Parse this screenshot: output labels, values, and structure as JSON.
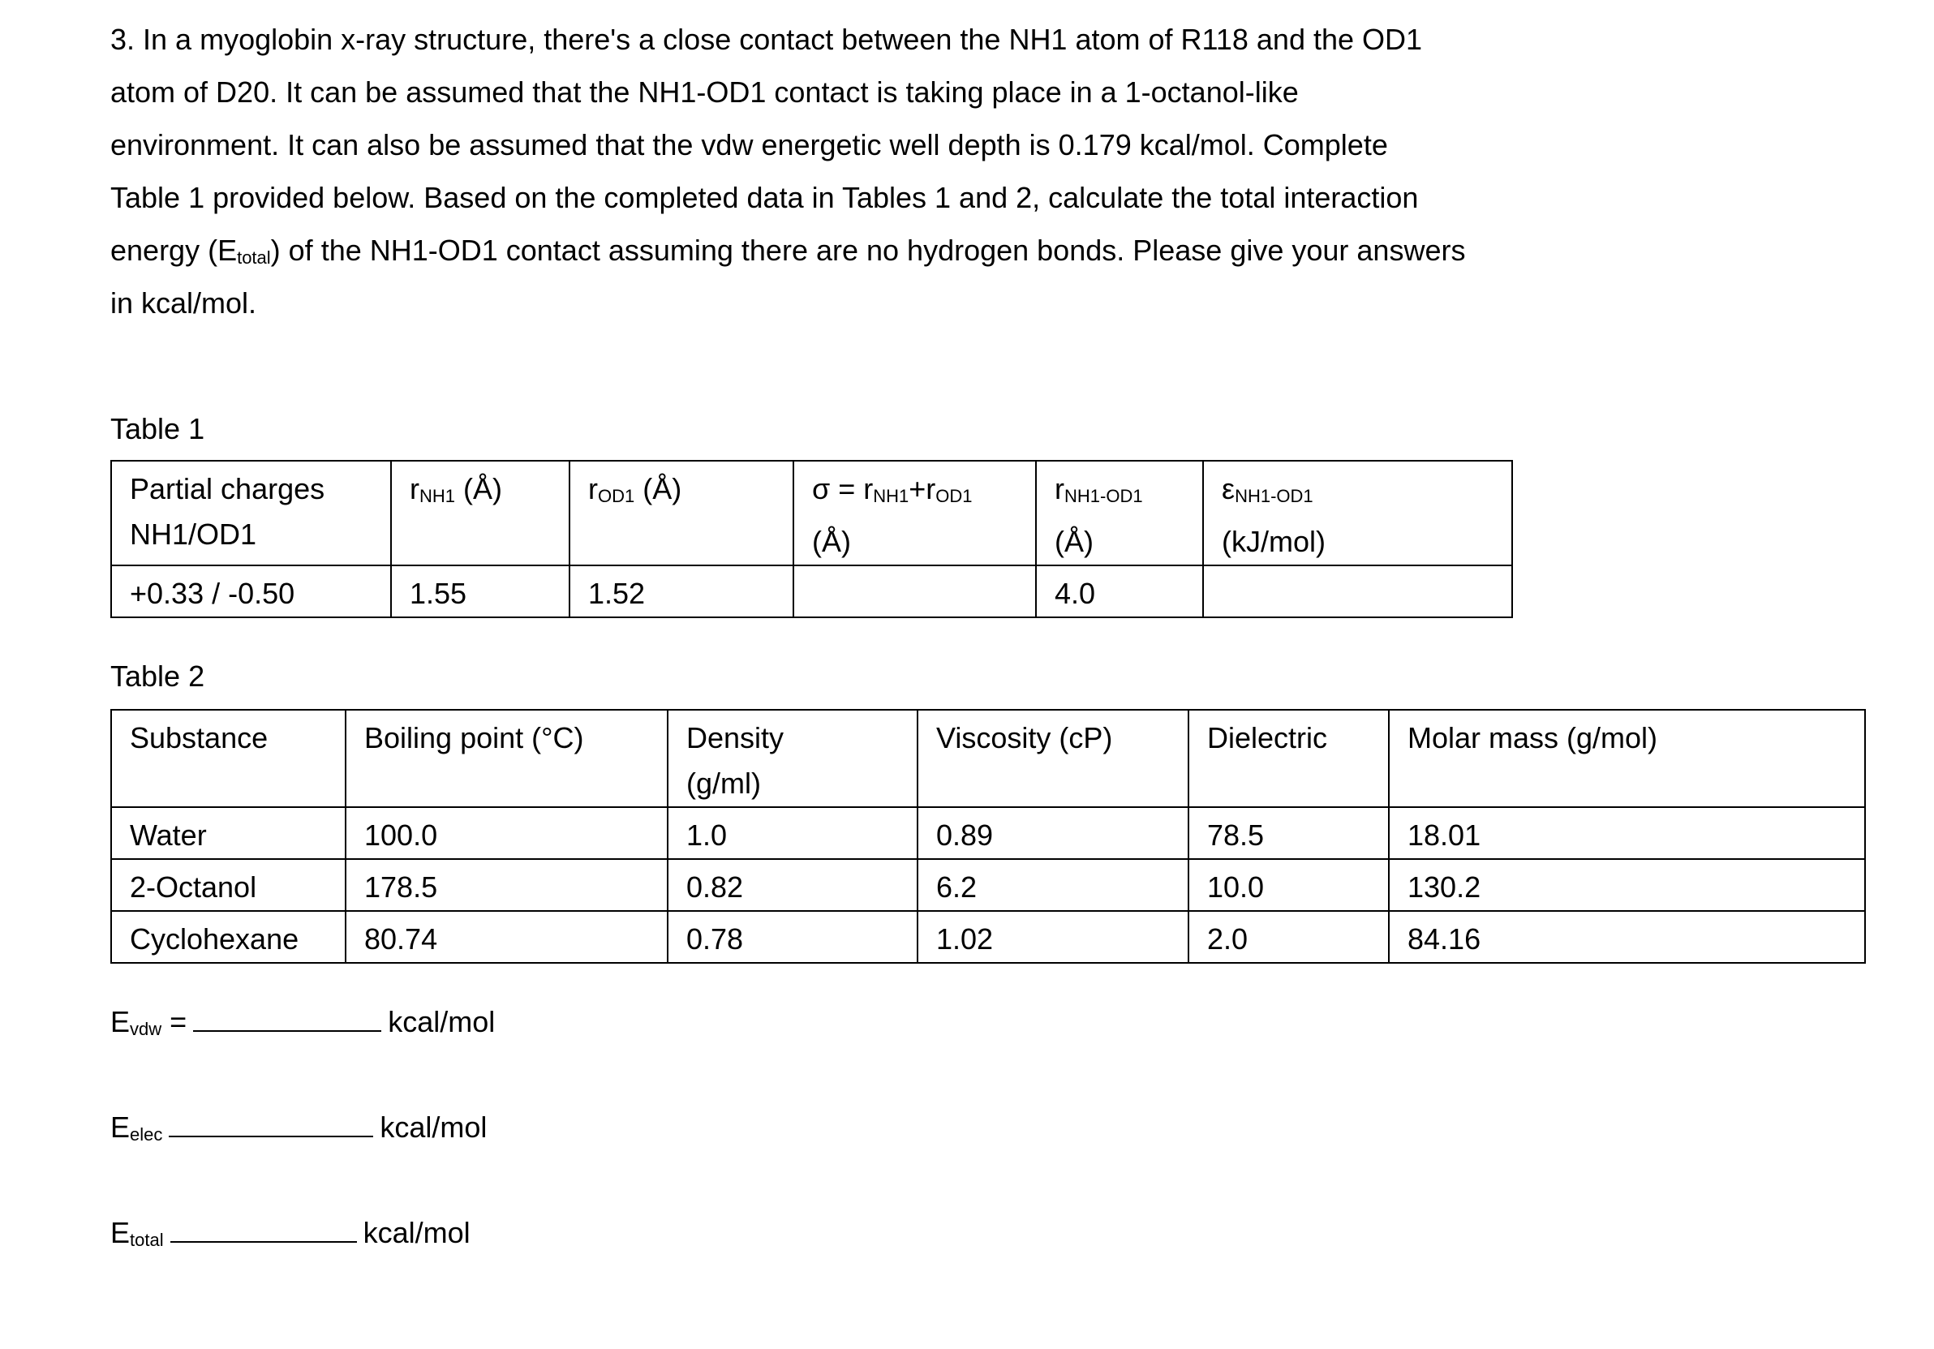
{
  "question": {
    "lines": [
      "3. In a myoglobin x-ray structure, there's a close contact between the NH1 atom of R118 and the OD1",
      "atom of D20.  It can be assumed that the NH1-OD1 contact is taking place in a 1-octanol-like",
      "environment.  It can also be assumed that the vdw energetic well depth is 0.179 kcal/mol.  Complete",
      "Table 1 provided below.  Based on the completed data in Tables 1 and 2, calculate the total interaction"
    ],
    "line5_pre": "energy (E",
    "line5_sub": "total",
    "line5_post": ") of the NH1-OD1 contact assuming there are no hydrogen bonds.  Please give your answers",
    "line6": "in kcal/mol."
  },
  "table1": {
    "caption": "Table 1",
    "headers": [
      {
        "main": "Partial charges",
        "line2": "NH1/OD1"
      },
      {
        "sym": "r",
        "sub": "NH1",
        "post": " (Å)"
      },
      {
        "sym": "r",
        "sub": "OD1",
        "post": " (Å)"
      },
      {
        "pre": "σ = r",
        "sub": "NH1",
        "mid": "+r",
        "sub2": "OD1",
        "line2": "(Å)"
      },
      {
        "sym": "r",
        "sub": "NH1-OD1",
        "line2": "(Å)"
      },
      {
        "sym": "ε",
        "sub": "NH1-OD1",
        "line2": "(kJ/mol)"
      }
    ],
    "row": [
      "+0.33 / -0.50",
      "1.55",
      "1.52",
      "",
      "4.0",
      ""
    ]
  },
  "table2": {
    "caption": "Table 2",
    "headers": [
      "Substance",
      "Boiling point (°C)",
      "Density",
      "Viscosity (cP)",
      "Dielectric",
      "Molar mass (g/mol)"
    ],
    "header_density_line2": "(g/ml)",
    "rows": [
      [
        "Water",
        "100.0",
        "1.0",
        "0.89",
        "78.5",
        "18.01"
      ],
      [
        "2-Octanol",
        "178.5",
        "0.82",
        "6.2",
        "10.0",
        "130.2"
      ],
      [
        "Cyclohexane",
        "80.74",
        "0.78",
        "1.02",
        "2.0",
        "84.16"
      ]
    ]
  },
  "answers": {
    "evdw": {
      "sym": "E",
      "sub": "vdw",
      "eq": "=",
      "unit": "kcal/mol",
      "value": ""
    },
    "eelec": {
      "sym": "E",
      "sub": "elec",
      "unit": "kcal/mol",
      "value": ""
    },
    "etotal": {
      "sym": "E",
      "sub": "total",
      "unit": "kcal/mol",
      "value": ""
    }
  }
}
